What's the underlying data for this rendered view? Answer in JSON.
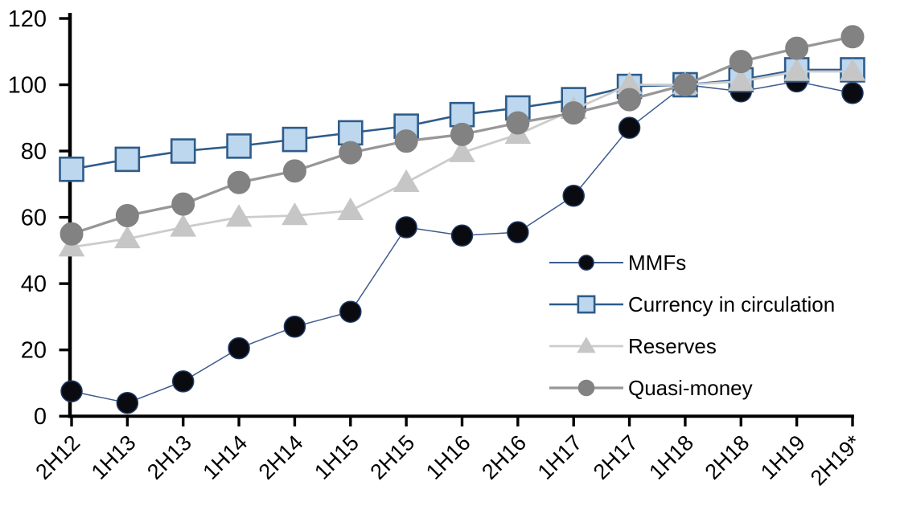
{
  "chart_data": {
    "type": "line",
    "title": "",
    "xlabel": "",
    "ylabel": "",
    "categories": [
      "2H12",
      "1H13",
      "2H13",
      "1H14",
      "2H14",
      "1H15",
      "2H15",
      "1H16",
      "2H16",
      "1H17",
      "2H17",
      "1H18",
      "2H18",
      "1H19",
      "2H19*"
    ],
    "series": [
      {
        "name": "MMFs",
        "marker": "circle",
        "values": [
          7.5,
          4,
          10.5,
          20.5,
          27,
          31.5,
          57,
          54.5,
          55.5,
          66.5,
          87,
          100,
          98,
          101,
          97.5
        ],
        "line_color": "#3C5C8E",
        "line_width": 1.5,
        "marker_fill": "#0A0B10",
        "marker_stroke": "#1F3864",
        "marker_stroke_width": 1.5,
        "marker_size": 26
      },
      {
        "name": "Currency in circulation",
        "marker": "square",
        "values": [
          74.5,
          77.5,
          80,
          81.5,
          83.5,
          85.5,
          87.5,
          91,
          93,
          95.5,
          99.5,
          100,
          101.5,
          104.5,
          104.5
        ],
        "line_color": "#2E5C8A",
        "line_width": 2.6,
        "marker_fill": "#BDD7EE",
        "marker_stroke": "#2E5C8A",
        "marker_stroke_width": 2.6,
        "marker_size": 29
      },
      {
        "name": "Reserves",
        "marker": "triangle",
        "values": [
          51,
          53.5,
          57,
          60,
          60.5,
          62,
          70.5,
          79.5,
          85,
          92.5,
          100,
          100,
          101,
          104,
          104
        ],
        "line_color": "#CCCCCC",
        "line_width": 2.8,
        "marker_fill": "#C6C6C6",
        "marker_stroke": "#C6C6C6",
        "marker_stroke_width": 1,
        "marker_size": 31
      },
      {
        "name": "Quasi-money",
        "marker": "circle",
        "values": [
          55,
          60.5,
          64,
          70.5,
          74,
          79.5,
          83,
          85,
          88.5,
          91.5,
          95.5,
          100,
          107,
          111,
          114.5
        ],
        "line_color": "#979797",
        "line_width": 3.3,
        "marker_fill": "#828282",
        "marker_stroke": "#828282",
        "marker_stroke_width": 1,
        "marker_size": 28
      }
    ],
    "y_ticks": [
      0,
      20,
      40,
      60,
      80,
      100,
      120
    ],
    "ylim": [
      0,
      120
    ],
    "grid": false,
    "legend_position": "middle-right-inside",
    "axis_color": "#000000",
    "note_in_last_category": "2H19*"
  }
}
